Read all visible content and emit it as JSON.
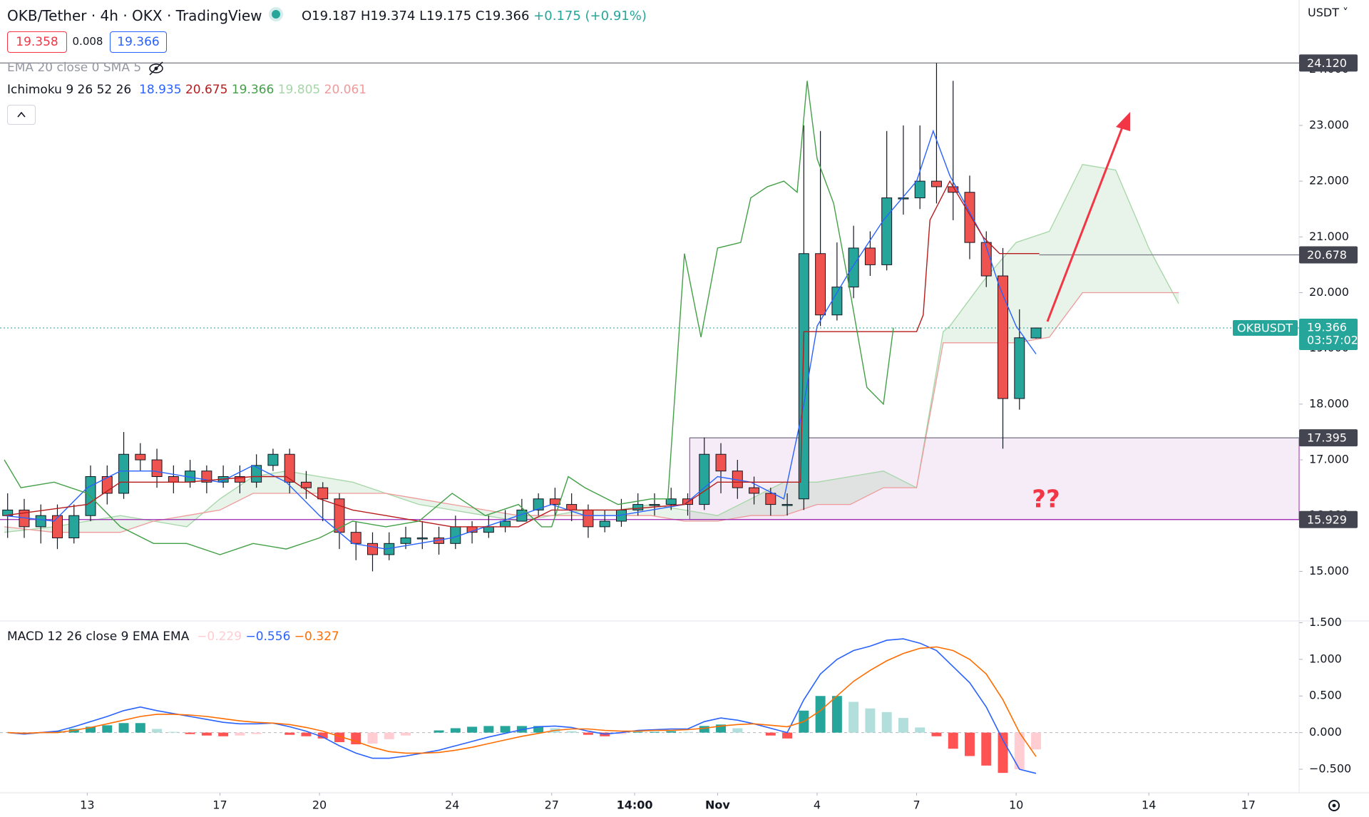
{
  "header": {
    "title": "OKB/Tether · 4h · OKX · TradingView",
    "ohlc": [
      "O19.187",
      "H19.374",
      "L19.175",
      "C19.366",
      "+0.175 (+0.91%)"
    ],
    "boxes": [
      "19.358",
      "0.008",
      "19.366"
    ],
    "ema": "EMA 20 close 0 SMA 5",
    "ichimoku": "Ichimoku 9 26 52 26",
    "ichimoku_values": [
      "18.935",
      "20.675",
      "19.366",
      "19.805",
      "20.061"
    ],
    "currency": "USDT"
  },
  "chart_data": [
    {
      "type": "candlestick",
      "xlim": [
        10.37,
        49.53
      ],
      "ylim": [
        14.11,
        25.25
      ],
      "yticks": [
        {
          "value": 15,
          "label": "15.000"
        },
        {
          "value": 16,
          "label": "16.000"
        },
        {
          "value": 17,
          "label": "17.000"
        },
        {
          "value": 18,
          "label": "18.000"
        },
        {
          "value": 19,
          "label": "19.000"
        },
        {
          "value": 20,
          "label": "20.000"
        },
        {
          "value": 21,
          "label": "21.000"
        },
        {
          "value": 22,
          "label": "22.000"
        },
        {
          "value": 23,
          "label": "23.000"
        },
        {
          "value": 24,
          "label": "24.000"
        }
      ],
      "up_color": "#26a69a",
      "down_color": "#ef5350",
      "x": [
        10.6,
        11.1,
        11.6,
        12.1,
        12.6,
        13.1,
        13.6,
        14.1,
        14.6,
        15.1,
        15.6,
        16.1,
        16.6,
        17.1,
        17.6,
        18.1,
        18.6,
        19.1,
        19.6,
        20.1,
        20.6,
        21.1,
        21.6,
        22.1,
        22.6,
        23.1,
        23.6,
        24.1,
        24.6,
        25.1,
        25.6,
        26.1,
        26.6,
        27.1,
        27.6,
        28.1,
        28.6,
        29.1,
        29.6,
        30.1,
        30.6,
        31.1,
        31.6,
        32.1,
        32.6,
        33.1,
        33.6,
        34.1,
        34.6,
        35.1,
        35.6,
        36.1,
        36.6,
        37.1,
        37.6,
        38.1,
        38.6,
        39.1,
        39.6,
        40.1,
        40.6,
        41.1,
        41.6
      ],
      "open": [
        16.0,
        16.1,
        15.8,
        16.0,
        15.6,
        16.0,
        16.7,
        16.4,
        17.1,
        17.0,
        16.7,
        16.6,
        16.8,
        16.6,
        16.7,
        16.6,
        16.9,
        17.1,
        16.6,
        16.5,
        16.3,
        15.7,
        15.5,
        15.3,
        15.5,
        15.6,
        15.6,
        15.5,
        15.8,
        15.7,
        15.8,
        15.9,
        16.1,
        16.3,
        16.2,
        16.1,
        15.8,
        15.9,
        16.1,
        16.2,
        16.2,
        16.3,
        16.2,
        17.1,
        16.8,
        16.5,
        16.4,
        16.2,
        16.3,
        20.7,
        19.6,
        20.1,
        20.8,
        20.5,
        21.7,
        21.7,
        22.0,
        21.9,
        21.8,
        20.9,
        20.3,
        18.1,
        19.187
      ],
      "high": [
        16.4,
        16.3,
        16.2,
        16.2,
        16.2,
        16.9,
        16.9,
        17.5,
        17.3,
        17.2,
        16.9,
        17.0,
        16.9,
        16.9,
        16.9,
        17.1,
        17.2,
        17.2,
        16.8,
        16.6,
        16.4,
        15.9,
        15.7,
        15.7,
        15.8,
        15.9,
        15.8,
        16.0,
        15.9,
        16.0,
        16.1,
        16.3,
        16.4,
        16.5,
        16.4,
        16.2,
        16.1,
        16.3,
        16.4,
        16.4,
        16.5,
        16.4,
        17.4,
        17.3,
        17.0,
        16.7,
        16.5,
        16.4,
        23.0,
        22.9,
        20.9,
        21.2,
        21.1,
        22.9,
        23.0,
        23.0,
        24.12,
        23.8,
        22.1,
        21.1,
        20.8,
        19.7,
        19.374
      ],
      "low": [
        15.6,
        15.6,
        15.5,
        15.4,
        15.5,
        15.9,
        16.2,
        16.3,
        16.8,
        16.5,
        16.4,
        16.5,
        16.4,
        16.5,
        16.4,
        16.5,
        16.8,
        16.4,
        16.3,
        15.9,
        15.4,
        15.2,
        15.0,
        15.2,
        15.4,
        15.4,
        15.3,
        15.4,
        15.5,
        15.6,
        15.7,
        15.9,
        16.0,
        16.0,
        15.9,
        15.6,
        15.7,
        15.8,
        16.0,
        16.0,
        16.1,
        16.0,
        16.1,
        16.4,
        16.3,
        16.2,
        16.0,
        16.0,
        16.1,
        19.4,
        19.5,
        19.9,
        20.3,
        20.4,
        21.4,
        21.5,
        21.6,
        21.3,
        20.6,
        20.1,
        17.2,
        17.9,
        19.175
      ],
      "close": [
        16.1,
        15.8,
        16.0,
        15.6,
        16.0,
        16.7,
        16.4,
        17.1,
        17.0,
        16.7,
        16.6,
        16.8,
        16.6,
        16.7,
        16.6,
        16.9,
        17.1,
        16.6,
        16.5,
        16.3,
        15.7,
        15.5,
        15.3,
        15.5,
        15.6,
        15.6,
        15.5,
        15.8,
        15.7,
        15.8,
        15.9,
        16.1,
        16.3,
        16.2,
        16.1,
        15.8,
        15.9,
        16.1,
        16.2,
        16.2,
        16.3,
        16.2,
        17.1,
        16.8,
        16.5,
        16.4,
        16.2,
        16.2,
        20.7,
        19.6,
        20.1,
        20.8,
        20.5,
        21.7,
        21.7,
        22.0,
        21.9,
        21.8,
        20.9,
        20.3,
        18.1,
        19.19,
        19.366
      ],
      "lines": [
        {
          "color": "#2962ff",
          "x": [
            10.5,
            12,
            13,
            14,
            15,
            16,
            17,
            18,
            19,
            20,
            21,
            22,
            23,
            24,
            25,
            26,
            27,
            28,
            29,
            30,
            31,
            32,
            33,
            34,
            34.6,
            35,
            36,
            37,
            38,
            38.5,
            39,
            40,
            40.5,
            41,
            41.6
          ],
          "values": [
            16.0,
            15.9,
            16.5,
            16.8,
            16.8,
            16.7,
            16.6,
            16.9,
            16.6,
            16.0,
            15.5,
            15.4,
            15.5,
            15.6,
            15.8,
            16.0,
            16.2,
            16.0,
            16.0,
            16.1,
            16.2,
            16.7,
            16.6,
            16.3,
            18.0,
            19.4,
            20.4,
            21.3,
            22.0,
            22.9,
            22.1,
            21.0,
            20.1,
            19.4,
            18.9
          ]
        },
        {
          "color": "#b71c1c",
          "x": [
            10.5,
            13,
            14,
            16,
            18,
            19,
            20,
            21,
            22,
            24,
            26,
            27,
            29,
            31,
            32,
            34.5,
            34.6,
            38,
            38.2,
            38.4,
            39,
            40,
            40.5,
            41.7
          ],
          "values": [
            16.0,
            16.2,
            16.6,
            16.6,
            16.7,
            16.7,
            16.3,
            16.1,
            16.0,
            15.8,
            15.8,
            16.1,
            16.1,
            16.2,
            16.6,
            16.6,
            19.3,
            19.3,
            19.6,
            21.3,
            22.0,
            21.0,
            20.7,
            20.7
          ]
        },
        {
          "color": "#43a047",
          "x": [
            10.5,
            11,
            12,
            13,
            14,
            15,
            16,
            17,
            18,
            19,
            20,
            21,
            22,
            23,
            24,
            25,
            26,
            26.7,
            27,
            27.5,
            28,
            29,
            30,
            30.5,
            31,
            31.5,
            32,
            32.7,
            33,
            33.5,
            34,
            34.4,
            34.7,
            35,
            35.5,
            36,
            36.5,
            37,
            37.3
          ],
          "values": [
            17.0,
            16.5,
            16.6,
            16.4,
            15.8,
            15.5,
            15.5,
            15.3,
            15.5,
            15.4,
            15.6,
            15.9,
            15.8,
            15.9,
            16.4,
            16.0,
            16.2,
            15.8,
            15.8,
            16.7,
            16.5,
            16.2,
            16.3,
            16.3,
            20.7,
            19.2,
            20.8,
            20.9,
            21.7,
            21.9,
            22.0,
            21.8,
            23.8,
            22.4,
            21.6,
            20.0,
            18.3,
            18.0,
            19.37
          ]
        }
      ],
      "cloud": {
        "color_a": "#a5d6a7",
        "color_b": "#ef9a9a",
        "fill": "rgba(67,160,71,0.12)",
        "x": [
          10.5,
          12,
          13,
          14,
          15,
          16,
          17,
          18,
          19,
          20,
          21,
          22,
          23,
          24,
          25,
          26,
          27,
          28,
          29,
          30,
          31,
          32,
          33,
          34,
          35,
          36,
          37,
          38,
          38.8,
          39,
          40,
          41,
          42,
          43,
          44,
          45,
          45.9
        ],
        "span_a": [
          15.7,
          15.8,
          15.9,
          16.0,
          15.9,
          15.8,
          16.3,
          16.7,
          16.8,
          16.7,
          16.6,
          16.4,
          16.2,
          16.1,
          16.0,
          15.9,
          16.0,
          16.1,
          16.1,
          16.2,
          16.1,
          16.0,
          16.3,
          16.6,
          16.6,
          16.7,
          16.8,
          16.5,
          19.3,
          19.4,
          20.2,
          20.9,
          21.1,
          22.3,
          22.2,
          20.8,
          19.8
        ],
        "span_b": [
          15.8,
          15.7,
          15.7,
          15.7,
          15.9,
          16.0,
          16.1,
          16.4,
          16.4,
          16.4,
          16.4,
          16.4,
          16.3,
          16.2,
          16.1,
          16.0,
          16.0,
          16.0,
          16.0,
          16.0,
          15.9,
          15.9,
          16.0,
          16.0,
          16.2,
          16.2,
          16.5,
          16.5,
          19.1,
          19.1,
          19.1,
          19.1,
          19.2,
          20.0,
          20.0,
          20.0,
          20.0
        ]
      },
      "levels": [
        {
          "value": 24.12,
          "label": "24.120"
        },
        20.678,
        17.395,
        15.929
      ],
      "level_starts": [
        null,
        41.7,
        31.16,
        null
      ],
      "level_colors": [
        "#787b86",
        "#787b86",
        "#787b86",
        "#9c27b0"
      ],
      "zone_color": "rgba(206,147,216,0.18)",
      "last": {
        "symbol": "OKBUSDT",
        "countdown": "03:57:02",
        "color": "#26a69a"
      },
      "annotation": "??",
      "annotation_color": "#f23645"
    },
    {
      "type": "macd",
      "legend": "MACD 12 26 close 9 EMA EMA",
      "legend_values": [
        "−0.229",
        "−0.556",
        "−0.327"
      ],
      "legend_colors": [
        "#ffcdd2",
        "#2962ff",
        "#ff6d00"
      ],
      "ylim": [
        -0.821,
        1.524
      ],
      "yticks": [
        {
          "value": -0.5,
          "label": "−0.500"
        },
        {
          "value": 0,
          "label": "0.000"
        },
        {
          "value": 0.5,
          "label": "0.500"
        },
        {
          "value": 1,
          "label": "1.000"
        },
        {
          "value": 1.5,
          "label": "1.500"
        }
      ],
      "xticks": [
        13,
        17,
        20,
        24,
        27,
        {
          "value": 29.5,
          "label": "14:00"
        },
        {
          "value": 32,
          "label": "Nov"
        },
        {
          "value": 35,
          "label": "4"
        },
        {
          "value": 38,
          "label": "7"
        },
        {
          "value": 41,
          "label": "10"
        },
        {
          "value": 45,
          "label": "14"
        },
        {
          "value": 48,
          "label": "17"
        }
      ],
      "series": [
        {
          "color": "#2962ff",
          "values": [
            0.0,
            -0.02,
            0.0,
            0.02,
            0.08,
            0.15,
            0.22,
            0.3,
            0.35,
            0.3,
            0.26,
            0.22,
            0.18,
            0.14,
            0.12,
            0.12,
            0.13,
            0.08,
            0.02,
            -0.06,
            -0.18,
            -0.28,
            -0.35,
            -0.35,
            -0.32,
            -0.28,
            -0.24,
            -0.18,
            -0.12,
            -0.06,
            -0.01,
            0.04,
            0.08,
            0.09,
            0.07,
            0.02,
            -0.02,
            0.0,
            0.03,
            0.04,
            0.05,
            0.05,
            0.15,
            0.2,
            0.17,
            0.12,
            0.06,
            0.0,
            0.45,
            0.8,
            1.0,
            1.12,
            1.18,
            1.26,
            1.28,
            1.22,
            1.12,
            0.9,
            0.68,
            0.35,
            -0.1,
            -0.5,
            -0.556
          ]
        },
        {
          "color": "#ff6d00",
          "values": [
            0.0,
            -0.01,
            0.0,
            0.0,
            0.03,
            0.07,
            0.12,
            0.17,
            0.22,
            0.25,
            0.25,
            0.24,
            0.22,
            0.19,
            0.16,
            0.14,
            0.13,
            0.11,
            0.07,
            0.02,
            -0.05,
            -0.12,
            -0.2,
            -0.26,
            -0.28,
            -0.28,
            -0.27,
            -0.24,
            -0.2,
            -0.15,
            -0.1,
            -0.05,
            -0.01,
            0.03,
            0.05,
            0.05,
            0.03,
            0.02,
            0.02,
            0.03,
            0.03,
            0.04,
            0.06,
            0.09,
            0.11,
            0.12,
            0.1,
            0.08,
            0.15,
            0.3,
            0.5,
            0.7,
            0.85,
            0.98,
            1.08,
            1.15,
            1.17,
            1.12,
            1.0,
            0.8,
            0.45,
            0.0,
            -0.327
          ]
        }
      ],
      "histogram": [
        0.0,
        -0.01,
        0.0,
        0.02,
        0.05,
        0.08,
        0.1,
        0.13,
        0.13,
        0.05,
        0.01,
        -0.02,
        -0.04,
        -0.05,
        -0.04,
        -0.02,
        0.0,
        -0.03,
        -0.05,
        -0.08,
        -0.13,
        -0.16,
        -0.15,
        -0.09,
        -0.04,
        0.0,
        0.03,
        0.06,
        0.08,
        0.09,
        0.09,
        0.09,
        0.09,
        0.06,
        0.02,
        -0.03,
        -0.05,
        -0.02,
        0.01,
        0.01,
        0.02,
        0.01,
        0.09,
        0.11,
        0.06,
        0.0,
        -0.04,
        -0.08,
        0.3,
        0.5,
        0.5,
        0.42,
        0.33,
        0.28,
        0.2,
        0.07,
        -0.05,
        -0.22,
        -0.32,
        -0.45,
        -0.55,
        -0.5,
        -0.229
      ],
      "histogram_colors": [
        "#26a69a",
        "#b2dfdb",
        "#ff5252",
        "#ffcdd2"
      ]
    }
  ]
}
